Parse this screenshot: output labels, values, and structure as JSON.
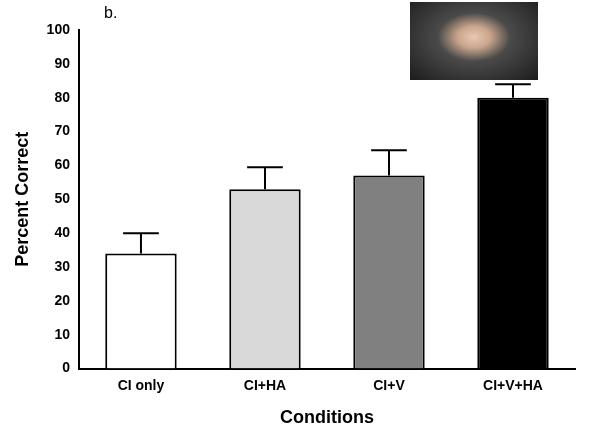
{
  "chart_data": {
    "type": "bar",
    "panel": "b.",
    "x_label": "Conditions",
    "y_label": "Percent Correct",
    "categories": [
      "CI only",
      "CI+HA",
      "CI+V",
      "CI+V+HA"
    ],
    "values": [
      34,
      53,
      57,
      80
    ],
    "errors": [
      6,
      6.5,
      7.5,
      4
    ],
    "colors": [
      "#ffffff",
      "#d9d9d9",
      "#808080",
      "#000000"
    ],
    "ylim": [
      0,
      100
    ],
    "yticks": [
      0,
      10,
      20,
      30,
      40,
      50,
      60,
      70,
      80,
      90,
      100
    ],
    "grid": false
  }
}
